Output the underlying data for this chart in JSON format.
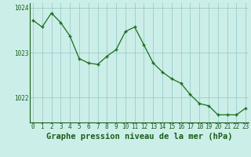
{
  "hours": [
    0,
    1,
    2,
    3,
    4,
    5,
    6,
    7,
    8,
    9,
    10,
    11,
    12,
    13,
    14,
    15,
    16,
    17,
    18,
    19,
    20,
    21,
    22,
    23
  ],
  "pressure": [
    1023.72,
    1023.57,
    1023.88,
    1023.67,
    1023.37,
    1022.87,
    1022.77,
    1022.74,
    1022.92,
    1023.07,
    1023.47,
    1023.57,
    1023.17,
    1022.77,
    1022.57,
    1022.42,
    1022.32,
    1022.07,
    1021.87,
    1021.82,
    1021.62,
    1021.62,
    1021.62,
    1021.77
  ],
  "line_color": "#1a6e1a",
  "marker_color": "#1a6e1a",
  "bg_color": "#cceee8",
  "grid_color": "#99cccc",
  "title": "Graphe pression niveau de la mer (hPa)",
  "ylim_min": 1021.45,
  "ylim_max": 1024.1,
  "yticks": [
    1022,
    1023,
    1024
  ],
  "title_fontsize": 7.5,
  "tick_fontsize": 5.5,
  "axis_label_color": "#1a5e1a"
}
